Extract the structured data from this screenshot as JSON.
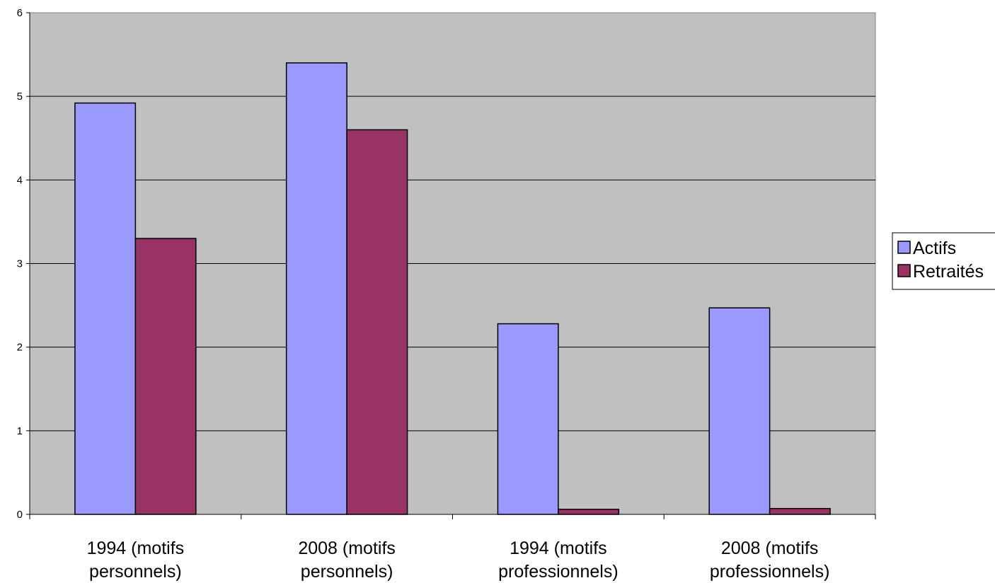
{
  "chart_data": {
    "type": "bar",
    "categories": [
      [
        "1994 (motifs",
        "personnels)"
      ],
      [
        "2008 (motifs",
        "personnels)"
      ],
      [
        "1994 (motifs",
        "professionnels)"
      ],
      [
        "2008 (motifs",
        "professionnels)"
      ]
    ],
    "series": [
      {
        "name": "Actifs",
        "values": [
          4.92,
          5.4,
          2.28,
          2.47
        ],
        "color": "#9999ff"
      },
      {
        "name": "Retraités",
        "values": [
          3.3,
          4.6,
          0.06,
          0.07
        ],
        "color": "#993366"
      }
    ],
    "ylim": [
      0,
      6
    ],
    "yticks": [
      0,
      1,
      2,
      3,
      4,
      5,
      6
    ],
    "grid": true,
    "plot_background": "#c0c0c0",
    "legend": "right"
  }
}
